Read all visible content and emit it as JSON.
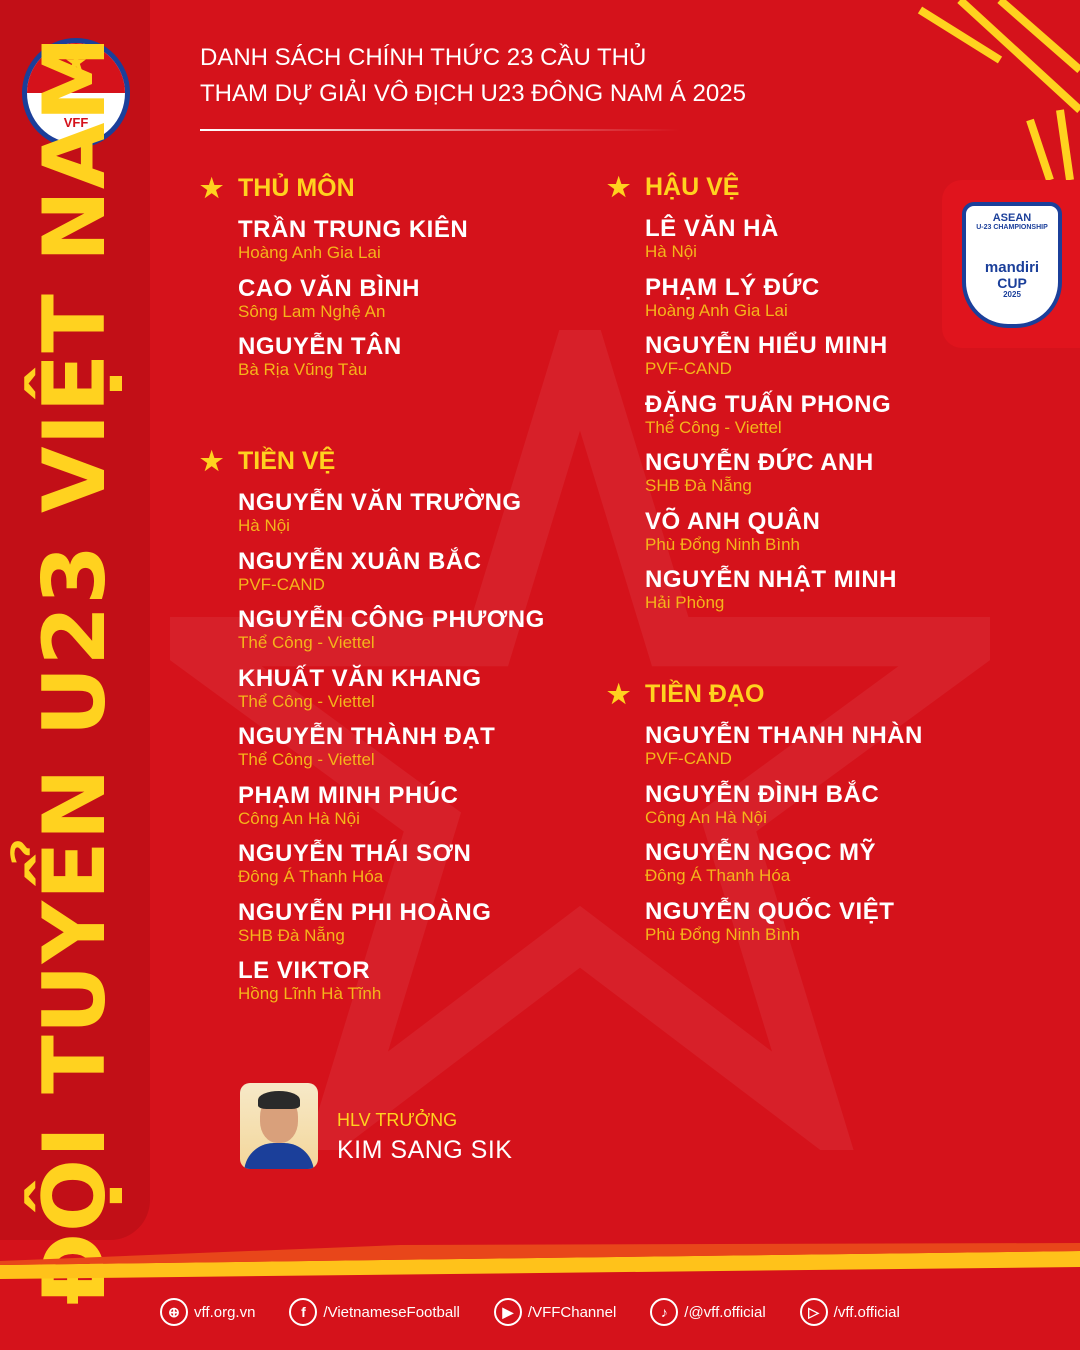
{
  "side_title": "ĐỘI TUYỂN U23 VIỆT NAM",
  "logo": {
    "text": "VFF"
  },
  "event_logo": {
    "line1": "ASEAN",
    "line2": "U-23 CHAMPIONSHIP",
    "line3": "mandiri",
    "line4": "CUP",
    "line5": "2025"
  },
  "headline": [
    "DANH SÁCH CHÍNH THỨC 23 CẦU THỦ",
    "THAM DỰ GIẢI VÔ ĐỊCH U23 ĐÔNG NAM Á 2025"
  ],
  "colors": {
    "background": "#d5121b",
    "accent": "#ffd21f",
    "club": "#f5b51a"
  },
  "sections": [
    {
      "title": "THỦ MÔN",
      "players": [
        {
          "name": "TRẦN TRUNG KIÊN",
          "club": "Hoàng Anh Gia Lai"
        },
        {
          "name": "CAO VĂN BÌNH",
          "club": "Sông Lam Nghệ An"
        },
        {
          "name": "NGUYỄN TÂN",
          "club": "Bà Rịa Vũng Tàu"
        }
      ]
    },
    {
      "title": "TIỀN VỆ",
      "players": [
        {
          "name": "NGUYỄN VĂN TRƯỜNG",
          "club": "Hà Nội"
        },
        {
          "name": "NGUYỄN XUÂN BẮC",
          "club": "PVF-CAND"
        },
        {
          "name": "NGUYỄN CÔNG PHƯƠNG",
          "club": "Thể Công - Viettel"
        },
        {
          "name": "KHUẤT VĂN KHANG",
          "club": "Thể Công - Viettel"
        },
        {
          "name": "NGUYỄN THÀNH ĐẠT",
          "club": "Thể Công - Viettel"
        },
        {
          "name": "PHẠM MINH PHÚC",
          "club": "Công An Hà Nội"
        },
        {
          "name": "NGUYỄN THÁI SƠN",
          "club": "Đông Á Thanh Hóa"
        },
        {
          "name": "NGUYỄN PHI HOÀNG",
          "club": "SHB Đà Nẵng"
        },
        {
          "name": "LE VIKTOR",
          "club": "Hồng Lĩnh Hà Tĩnh"
        }
      ]
    },
    {
      "title": "HẬU VỆ",
      "players": [
        {
          "name": "LÊ VĂN HÀ",
          "club": "Hà Nội"
        },
        {
          "name": "PHẠM LÝ ĐỨC",
          "club": "Hoàng Anh Gia Lai"
        },
        {
          "name": "NGUYỄN HIỂU MINH",
          "club": "PVF-CAND"
        },
        {
          "name": "ĐẶNG TUẤN PHONG",
          "club": "Thể Công - Viettel"
        },
        {
          "name": "NGUYỄN ĐỨC ANH",
          "club": "SHB Đà Nẵng"
        },
        {
          "name": "VÕ ANH QUÂN",
          "club": "Phù Đổng Ninh Bình"
        },
        {
          "name": "NGUYỄN NHẬT MINH",
          "club": "Hải Phòng"
        }
      ]
    },
    {
      "title": "TIỀN ĐẠO",
      "players": [
        {
          "name": "NGUYỄN THANH NHÀN",
          "club": "PVF-CAND"
        },
        {
          "name": "NGUYỄN ĐÌNH BẮC",
          "club": "Công An Hà Nội"
        },
        {
          "name": "NGUYỄN NGỌC MỸ",
          "club": "Đông Á Thanh Hóa"
        },
        {
          "name": "NGUYỄN QUỐC VIỆT",
          "club": "Phù Đổng Ninh Bình"
        }
      ]
    }
  ],
  "coach": {
    "title": "HLV TRƯỞNG",
    "name": "KIM SANG SIK"
  },
  "footer": [
    {
      "icon": "globe-icon",
      "glyph": "⊕",
      "label": "vff.org.vn"
    },
    {
      "icon": "facebook-icon",
      "glyph": "f",
      "label": "/VietnameseFootball"
    },
    {
      "icon": "youtube-icon",
      "glyph": "▶",
      "label": "/VFFChannel"
    },
    {
      "icon": "tiktok-icon",
      "glyph": "♪",
      "label": "/@vff.official"
    },
    {
      "icon": "play-icon",
      "glyph": "▷",
      "label": "/vff.official"
    }
  ]
}
